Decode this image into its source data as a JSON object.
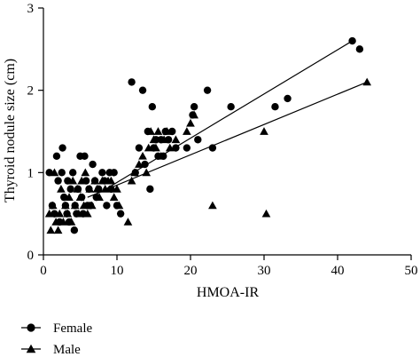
{
  "chart_data": {
    "type": "scatter",
    "title": "",
    "xlabel": "HMOA-IR",
    "ylabel": "Thyroid nodule size (cm)",
    "xlim": [
      0,
      50
    ],
    "ylim": [
      0,
      3
    ],
    "xticks": [
      0,
      10,
      20,
      30,
      40,
      50
    ],
    "yticks": [
      0,
      1,
      2,
      3
    ],
    "grid": false,
    "legend_position": "bottom-left",
    "series": [
      {
        "name": "Female",
        "marker": "circle",
        "color": "#000000",
        "points": [
          [
            0.8,
            1.0
          ],
          [
            1.2,
            0.6
          ],
          [
            1.5,
            0.5
          ],
          [
            1.8,
            1.2
          ],
          [
            2.0,
            0.9
          ],
          [
            2.2,
            0.4
          ],
          [
            2.5,
            1.0
          ],
          [
            2.6,
            1.3
          ],
          [
            2.8,
            0.7
          ],
          [
            3.0,
            0.6
          ],
          [
            3.2,
            0.5
          ],
          [
            3.3,
            0.9
          ],
          [
            3.5,
            0.4
          ],
          [
            3.7,
            0.8
          ],
          [
            4.0,
            1.0
          ],
          [
            4.2,
            0.3
          ],
          [
            4.3,
            0.6
          ],
          [
            4.5,
            0.5
          ],
          [
            4.7,
            0.8
          ],
          [
            5.0,
            1.2
          ],
          [
            5.2,
            0.7
          ],
          [
            5.4,
            0.5
          ],
          [
            5.6,
            1.2
          ],
          [
            5.8,
            0.9
          ],
          [
            6.0,
            0.6
          ],
          [
            6.2,
            0.8
          ],
          [
            6.4,
            0.6
          ],
          [
            6.7,
            1.1
          ],
          [
            7.0,
            0.9
          ],
          [
            7.2,
            0.7
          ],
          [
            7.5,
            0.8
          ],
          [
            8.0,
            1.0
          ],
          [
            8.3,
            0.9
          ],
          [
            8.6,
            0.6
          ],
          [
            9.0,
            1.0
          ],
          [
            9.2,
            0.8
          ],
          [
            9.6,
            1.0
          ],
          [
            10.0,
            0.6
          ],
          [
            10.5,
            0.5
          ],
          [
            12.0,
            2.1
          ],
          [
            12.5,
            1.0
          ],
          [
            13.0,
            1.3
          ],
          [
            13.5,
            2.0
          ],
          [
            13.8,
            1.1
          ],
          [
            14.2,
            1.5
          ],
          [
            14.5,
            0.8
          ],
          [
            14.8,
            1.8
          ],
          [
            15.0,
            1.3
          ],
          [
            15.3,
            1.4
          ],
          [
            15.6,
            1.2
          ],
          [
            16.0,
            1.4
          ],
          [
            16.3,
            1.2
          ],
          [
            16.6,
            1.5
          ],
          [
            17.0,
            1.4
          ],
          [
            17.5,
            1.5
          ],
          [
            18.0,
            1.3
          ],
          [
            19.5,
            1.3
          ],
          [
            20.3,
            1.7
          ],
          [
            20.5,
            1.8
          ],
          [
            21.0,
            1.4
          ],
          [
            22.3,
            2.0
          ],
          [
            23.0,
            1.3
          ],
          [
            25.5,
            1.8
          ],
          [
            31.5,
            1.8
          ],
          [
            33.2,
            1.9
          ],
          [
            42.0,
            2.6
          ],
          [
            43.0,
            2.5
          ]
        ],
        "trend": [
          [
            8.5,
            0.8
          ],
          [
            42.0,
            2.6
          ]
        ]
      },
      {
        "name": "Male",
        "marker": "triangle",
        "color": "#000000",
        "points": [
          [
            0.8,
            0.5
          ],
          [
            1.0,
            0.3
          ],
          [
            1.3,
            0.6
          ],
          [
            1.5,
            1.0
          ],
          [
            1.7,
            0.4
          ],
          [
            2.0,
            0.3
          ],
          [
            2.2,
            0.5
          ],
          [
            2.4,
            0.8
          ],
          [
            2.7,
            0.4
          ],
          [
            3.0,
            0.6
          ],
          [
            3.3,
            0.5
          ],
          [
            3.5,
            0.7
          ],
          [
            3.8,
            0.4
          ],
          [
            4.0,
            0.9
          ],
          [
            4.3,
            0.6
          ],
          [
            4.6,
            0.8
          ],
          [
            4.8,
            0.5
          ],
          [
            5.0,
            0.7
          ],
          [
            5.2,
            0.9
          ],
          [
            5.5,
            0.6
          ],
          [
            5.7,
            1.0
          ],
          [
            6.0,
            0.5
          ],
          [
            6.3,
            0.8
          ],
          [
            6.6,
            0.6
          ],
          [
            7.0,
            0.9
          ],
          [
            7.3,
            0.8
          ],
          [
            7.6,
            0.7
          ],
          [
            8.0,
            0.9
          ],
          [
            8.4,
            0.8
          ],
          [
            8.8,
            0.9
          ],
          [
            9.2,
            0.9
          ],
          [
            9.6,
            0.7
          ],
          [
            10.0,
            0.8
          ],
          [
            10.3,
            0.6
          ],
          [
            11.5,
            0.4
          ],
          [
            12.0,
            0.9
          ],
          [
            12.4,
            1.0
          ],
          [
            13.0,
            1.1
          ],
          [
            13.5,
            1.2
          ],
          [
            14.0,
            1.0
          ],
          [
            14.3,
            1.3
          ],
          [
            14.6,
            1.5
          ],
          [
            15.0,
            1.4
          ],
          [
            15.3,
            1.3
          ],
          [
            15.6,
            1.5
          ],
          [
            16.0,
            1.2
          ],
          [
            16.4,
            1.4
          ],
          [
            16.8,
            1.5
          ],
          [
            17.2,
            1.3
          ],
          [
            18.0,
            1.4
          ],
          [
            19.5,
            1.5
          ],
          [
            20.0,
            1.6
          ],
          [
            20.5,
            1.7
          ],
          [
            23.0,
            0.6
          ],
          [
            30.0,
            1.5
          ],
          [
            30.3,
            0.5
          ],
          [
            44.0,
            2.1
          ]
        ],
        "trend": [
          [
            6.0,
            0.7
          ],
          [
            44.0,
            2.1
          ]
        ]
      }
    ]
  }
}
